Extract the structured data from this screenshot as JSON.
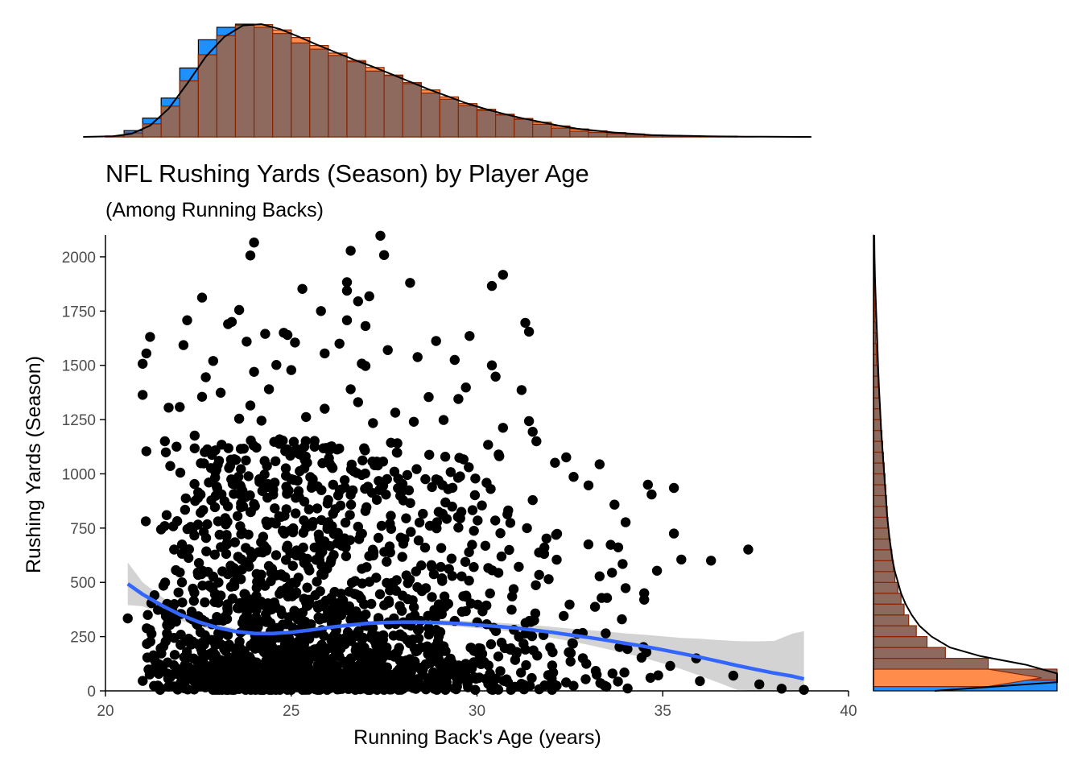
{
  "colors": {
    "point": "#000000",
    "smooth_line": "#3366FF",
    "confidence_band": "#D3D3D3",
    "hist_bar_fill": "#1E90FF",
    "density_fill": "#FF8C4B",
    "hist_bar_border": "#8B2500",
    "overlay_fill": "#8E6A5E"
  },
  "chart_data": {
    "type": "scatter",
    "title": "NFL Rushing Yards (Season) by Player Age",
    "subtitle": "(Among Running Backs)",
    "xlabel": "Running Back's Age (years)",
    "ylabel": "Rushing Yards (Season)",
    "xlim": [
      20,
      40
    ],
    "ylim": [
      0,
      2100
    ],
    "x_ticks": [
      20,
      25,
      30,
      35,
      40
    ],
    "x_tick_labels": [
      "20",
      "25",
      "30",
      "35",
      "40"
    ],
    "y_ticks": [
      0,
      250,
      500,
      750,
      1000,
      1250,
      1500,
      1750,
      2000
    ],
    "y_tick_labels": [
      "0",
      "250",
      "500",
      "750",
      "1000",
      "1250",
      "1500",
      "1750",
      "2000"
    ],
    "grid": false,
    "legend": "none",
    "scatter_points": [
      {
        "x": 24.0,
        "y": 2066
      },
      {
        "x": 23.9,
        "y": 2006
      },
      {
        "x": 26.6,
        "y": 2028
      },
      {
        "x": 27.5,
        "y": 2008
      },
      {
        "x": 27.4,
        "y": 2097
      },
      {
        "x": 25.3,
        "y": 1852
      },
      {
        "x": 26.5,
        "y": 1883
      },
      {
        "x": 26.5,
        "y": 1844
      },
      {
        "x": 28.2,
        "y": 1880
      },
      {
        "x": 30.4,
        "y": 1866
      },
      {
        "x": 30.7,
        "y": 1917
      },
      {
        "x": 22.6,
        "y": 1812
      },
      {
        "x": 27.1,
        "y": 1818
      },
      {
        "x": 26.8,
        "y": 1795
      },
      {
        "x": 23.6,
        "y": 1755
      },
      {
        "x": 25.8,
        "y": 1750
      },
      {
        "x": 23.3,
        "y": 1690
      },
      {
        "x": 23.4,
        "y": 1700
      },
      {
        "x": 22.2,
        "y": 1708
      },
      {
        "x": 26.5,
        "y": 1708
      },
      {
        "x": 27.0,
        "y": 1681
      },
      {
        "x": 31.3,
        "y": 1696
      },
      {
        "x": 31.4,
        "y": 1655
      },
      {
        "x": 21.2,
        "y": 1631
      },
      {
        "x": 24.3,
        "y": 1645
      },
      {
        "x": 24.8,
        "y": 1650
      },
      {
        "x": 24.9,
        "y": 1640
      },
      {
        "x": 29.8,
        "y": 1635
      },
      {
        "x": 21.1,
        "y": 1555
      },
      {
        "x": 21.0,
        "y": 1507
      },
      {
        "x": 22.1,
        "y": 1593
      },
      {
        "x": 23.8,
        "y": 1609
      },
      {
        "x": 25.1,
        "y": 1605
      },
      {
        "x": 26.3,
        "y": 1600
      },
      {
        "x": 28.9,
        "y": 1612
      },
      {
        "x": 27.6,
        "y": 1570
      },
      {
        "x": 25.9,
        "y": 1555
      },
      {
        "x": 22.9,
        "y": 1520
      },
      {
        "x": 28.4,
        "y": 1538
      },
      {
        "x": 29.4,
        "y": 1525
      },
      {
        "x": 30.4,
        "y": 1500
      },
      {
        "x": 24.6,
        "y": 1502
      },
      {
        "x": 27.0,
        "y": 1497
      },
      {
        "x": 26.9,
        "y": 1508
      },
      {
        "x": 24.0,
        "y": 1470
      },
      {
        "x": 25.0,
        "y": 1478
      },
      {
        "x": 30.5,
        "y": 1448
      },
      {
        "x": 22.7,
        "y": 1445
      },
      {
        "x": 21.0,
        "y": 1364
      },
      {
        "x": 23.1,
        "y": 1374
      },
      {
        "x": 24.4,
        "y": 1390
      },
      {
        "x": 26.6,
        "y": 1390
      },
      {
        "x": 29.7,
        "y": 1398
      },
      {
        "x": 31.2,
        "y": 1386
      },
      {
        "x": 21.7,
        "y": 1305
      },
      {
        "x": 22.0,
        "y": 1308
      },
      {
        "x": 22.6,
        "y": 1355
      },
      {
        "x": 23.9,
        "y": 1315
      },
      {
        "x": 28.7,
        "y": 1354
      },
      {
        "x": 29.5,
        "y": 1345
      },
      {
        "x": 25.9,
        "y": 1300
      },
      {
        "x": 26.8,
        "y": 1330
      },
      {
        "x": 27.8,
        "y": 1282
      },
      {
        "x": 23.6,
        "y": 1254
      },
      {
        "x": 24.2,
        "y": 1245
      },
      {
        "x": 25.4,
        "y": 1262
      },
      {
        "x": 27.2,
        "y": 1234
      },
      {
        "x": 28.3,
        "y": 1240
      },
      {
        "x": 29.1,
        "y": 1248
      },
      {
        "x": 31.4,
        "y": 1243
      },
      {
        "x": 30.7,
        "y": 1212
      },
      {
        "x": 31.5,
        "y": 1194
      },
      {
        "x": 21.1,
        "y": 1104
      },
      {
        "x": 21.6,
        "y": 1150
      },
      {
        "x": 22.4,
        "y": 1176
      },
      {
        "x": 30.3,
        "y": 1134
      },
      {
        "x": 31.6,
        "y": 1150
      },
      {
        "x": 32.4,
        "y": 1076
      },
      {
        "x": 30.6,
        "y": 1081
      },
      {
        "x": 32.1,
        "y": 1051
      },
      {
        "x": 33.3,
        "y": 1044
      },
      {
        "x": 34.6,
        "y": 950
      },
      {
        "x": 34.7,
        "y": 905
      },
      {
        "x": 35.3,
        "y": 935
      },
      {
        "x": 33.0,
        "y": 947
      },
      {
        "x": 32.6,
        "y": 986
      },
      {
        "x": 33.7,
        "y": 858
      },
      {
        "x": 31.5,
        "y": 879
      },
      {
        "x": 34.0,
        "y": 777
      },
      {
        "x": 35.3,
        "y": 725
      },
      {
        "x": 35.5,
        "y": 605
      },
      {
        "x": 36.3,
        "y": 600
      },
      {
        "x": 37.3,
        "y": 651
      },
      {
        "x": 33.6,
        "y": 673
      },
      {
        "x": 33.8,
        "y": 661
      },
      {
        "x": 33.3,
        "y": 528
      },
      {
        "x": 34.5,
        "y": 450
      },
      {
        "x": 34.5,
        "y": 420
      },
      {
        "x": 33.5,
        "y": 428
      },
      {
        "x": 33.9,
        "y": 330
      },
      {
        "x": 20.6,
        "y": 334
      },
      {
        "x": 36.0,
        "y": 45
      },
      {
        "x": 36.9,
        "y": 70
      },
      {
        "x": 37.6,
        "y": 30
      },
      {
        "x": 38.2,
        "y": 10
      },
      {
        "x": 38.8,
        "y": 5
      },
      {
        "x": 35.2,
        "y": 115
      },
      {
        "x": 35.9,
        "y": 150
      }
    ],
    "scatter_density": [
      {
        "x_center": 21.25,
        "n": 30,
        "y_shape": 0.25
      },
      {
        "x_center": 21.75,
        "n": 45,
        "y_shape": 0.22
      },
      {
        "x_center": 22.25,
        "n": 70,
        "y_shape": 0.2
      },
      {
        "x_center": 22.75,
        "n": 95,
        "y_shape": 0.19
      },
      {
        "x_center": 23.25,
        "n": 120,
        "y_shape": 0.18
      },
      {
        "x_center": 23.75,
        "n": 135,
        "y_shape": 0.18
      },
      {
        "x_center": 24.25,
        "n": 140,
        "y_shape": 0.18
      },
      {
        "x_center": 24.75,
        "n": 135,
        "y_shape": 0.18
      },
      {
        "x_center": 25.25,
        "n": 130,
        "y_shape": 0.18
      },
      {
        "x_center": 25.75,
        "n": 125,
        "y_shape": 0.19
      },
      {
        "x_center": 26.25,
        "n": 115,
        "y_shape": 0.19
      },
      {
        "x_center": 26.75,
        "n": 105,
        "y_shape": 0.19
      },
      {
        "x_center": 27.25,
        "n": 95,
        "y_shape": 0.2
      },
      {
        "x_center": 27.75,
        "n": 85,
        "y_shape": 0.2
      },
      {
        "x_center": 28.25,
        "n": 75,
        "y_shape": 0.21
      },
      {
        "x_center": 28.75,
        "n": 62,
        "y_shape": 0.22
      },
      {
        "x_center": 29.25,
        "n": 52,
        "y_shape": 0.23
      },
      {
        "x_center": 29.75,
        "n": 42,
        "y_shape": 0.24
      },
      {
        "x_center": 30.25,
        "n": 35,
        "y_shape": 0.25
      },
      {
        "x_center": 30.75,
        "n": 28,
        "y_shape": 0.26
      },
      {
        "x_center": 31.25,
        "n": 22,
        "y_shape": 0.28
      },
      {
        "x_center": 31.75,
        "n": 18,
        "y_shape": 0.3
      },
      {
        "x_center": 32.25,
        "n": 14,
        "y_shape": 0.32
      },
      {
        "x_center": 32.75,
        "n": 11,
        "y_shape": 0.34
      },
      {
        "x_center": 33.25,
        "n": 8,
        "y_shape": 0.36
      },
      {
        "x_center": 33.75,
        "n": 6,
        "y_shape": 0.4
      },
      {
        "x_center": 34.25,
        "n": 5,
        "y_shape": 0.45
      },
      {
        "x_center": 34.75,
        "n": 4,
        "y_shape": 0.5
      }
    ],
    "smooth": {
      "x": [
        20.6,
        21.0,
        21.5,
        22.0,
        22.5,
        23.0,
        23.5,
        24.0,
        24.5,
        25.0,
        25.5,
        26.0,
        26.5,
        27.0,
        27.5,
        28.0,
        28.5,
        29.0,
        29.5,
        30.0,
        30.5,
        31.0,
        31.5,
        32.0,
        32.5,
        33.0,
        33.5,
        34.0,
        34.5,
        35.0,
        35.5,
        36.0,
        36.5,
        37.0,
        37.5,
        38.0,
        38.5,
        38.8
      ],
      "y": [
        493,
        445,
        395,
        352,
        318,
        292,
        274,
        265,
        264,
        270,
        280,
        292,
        302,
        310,
        315,
        317,
        316,
        314,
        310,
        304,
        298,
        290,
        281,
        270,
        258,
        246,
        233,
        219,
        205,
        189,
        172,
        155,
        136,
        117,
        99,
        82,
        67,
        55
      ],
      "ci_lower": [
        395,
        390,
        355,
        325,
        298,
        276,
        262,
        255,
        255,
        261,
        271,
        282,
        292,
        299,
        304,
        305,
        304,
        301,
        296,
        289,
        281,
        271,
        259,
        245,
        229,
        212,
        193,
        173,
        151,
        127,
        100,
        70,
        38,
        5,
        0,
        0,
        0,
        0
      ],
      "ci_upper": [
        592,
        500,
        435,
        379,
        338,
        308,
        286,
        275,
        273,
        279,
        289,
        302,
        312,
        321,
        326,
        329,
        328,
        327,
        324,
        319,
        315,
        309,
        303,
        295,
        287,
        280,
        273,
        265,
        259,
        251,
        244,
        240,
        234,
        229,
        228,
        230,
        264,
        275
      ]
    },
    "top_histogram": {
      "bin_edges": [
        20.0,
        20.5,
        21.0,
        21.5,
        22.0,
        22.5,
        23.0,
        23.5,
        24.0,
        24.5,
        25.0,
        25.5,
        26.0,
        26.5,
        27.0,
        27.5,
        28.0,
        28.5,
        29.0,
        29.5,
        30.0,
        30.5,
        31.0,
        31.5,
        32.0,
        32.5,
        33.0,
        33.5,
        34.0,
        34.5,
        35.0,
        35.5,
        36.0,
        36.5,
        37.0,
        37.5,
        38.0,
        38.5,
        39.0
      ],
      "counts": [
        1,
        10,
        30,
        62,
        110,
        155,
        175,
        180,
        175,
        165,
        150,
        140,
        130,
        120,
        105,
        98,
        85,
        70,
        60,
        50,
        42,
        35,
        28,
        20,
        14,
        9,
        7,
        5,
        3,
        2,
        2,
        1,
        1,
        1,
        0,
        0,
        0,
        0
      ],
      "density_x": [
        20.2,
        20.7,
        21.2,
        21.7,
        22.2,
        22.7,
        23.2,
        23.7,
        24.2,
        24.7,
        25.2,
        25.7,
        26.2,
        26.7,
        27.2,
        27.7,
        28.2,
        28.7,
        29.2,
        29.7,
        30.2,
        30.7,
        31.2,
        31.7,
        32.2,
        32.7,
        33.2,
        33.7,
        34.2,
        34.7,
        35.2,
        35.7,
        36.2,
        36.7,
        37.2,
        37.7,
        38.2,
        38.7,
        39.0
      ],
      "density_y": [
        1,
        5,
        18,
        45,
        85,
        128,
        160,
        178,
        180,
        172,
        160,
        147,
        135,
        123,
        112,
        100,
        88,
        76,
        65,
        54,
        45,
        37,
        30,
        24,
        18,
        13,
        10,
        7,
        5,
        3,
        2,
        1.5,
        1,
        0.6,
        0.4,
        0.2,
        0.1,
        0.05,
        0
      ]
    },
    "right_histogram": {
      "bin_edges": [
        0,
        50,
        100,
        150,
        200,
        250,
        300,
        350,
        400,
        450,
        500,
        550,
        600,
        650,
        700,
        750,
        800,
        850,
        900,
        950,
        1000,
        1050,
        1100,
        1150,
        1200,
        1250,
        1300,
        1350,
        1400,
        1450,
        1500,
        1550,
        1600,
        1650,
        1700,
        1750,
        1800,
        1850,
        1900,
        1950,
        2000,
        2050,
        2100
      ],
      "counts": [
        1300,
        130,
        75,
        47,
        35,
        28,
        23,
        20,
        18,
        16,
        14,
        13,
        12,
        11,
        10,
        9.5,
        9,
        8.5,
        8,
        7.5,
        7,
        6.5,
        6,
        5.5,
        5,
        4.5,
        4,
        3.5,
        3,
        2.5,
        2,
        1.8,
        1.5,
        1.2,
        1,
        0.8,
        0.6,
        0.5,
        0.4,
        0.3,
        0.2,
        0.1
      ],
      "density_y": [
        0,
        40,
        80,
        120,
        160,
        200,
        250,
        300,
        350,
        400,
        450,
        500,
        550,
        600,
        700,
        800,
        900,
        1000,
        1100,
        1200,
        1300,
        1400,
        1500,
        1600,
        1700,
        1800,
        1900,
        2000,
        2100
      ],
      "density_x": [
        40,
        200,
        150,
        100,
        70,
        50,
        38,
        30,
        25,
        21,
        18,
        16,
        14,
        12.5,
        10.5,
        9,
        8,
        7,
        6,
        5,
        4.3,
        3.6,
        3,
        2.5,
        2,
        1.5,
        1,
        0.7,
        0.5
      ]
    }
  }
}
